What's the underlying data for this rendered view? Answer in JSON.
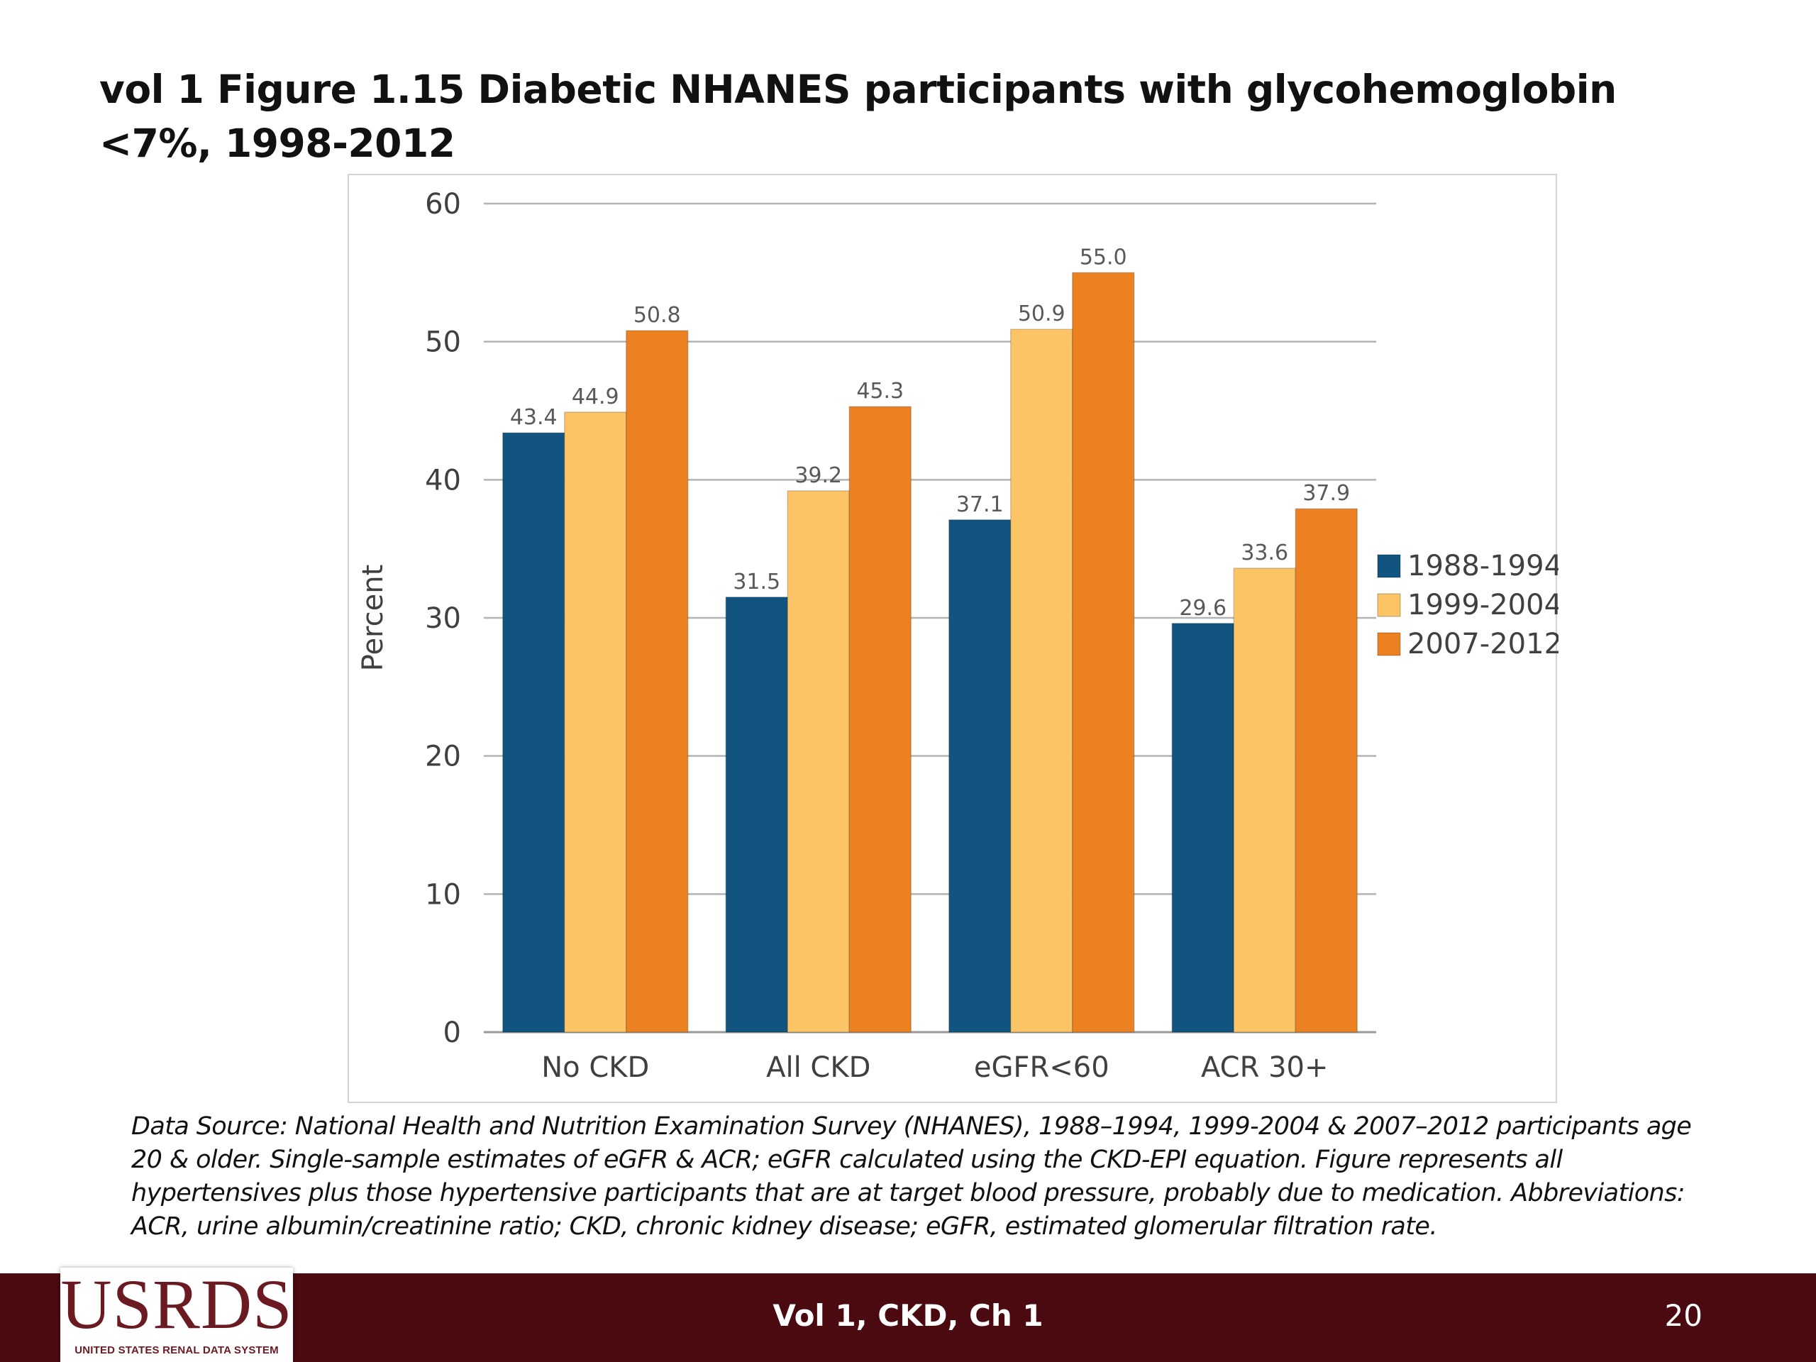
{
  "slide": {
    "title": "vol 1 Figure 1.15 Diabetic NHANES participants with glycohemoglobin <7%, 1998-2012",
    "caption": "Data Source: National Health and Nutrition Examination Survey (NHANES), 1988–1994, 1999-2004 & 2007–2012 participants age 20 & older. Single-sample estimates of eGFR & ACR; eGFR calculated using the CKD-EPI equation. Figure represents all hypertensives plus those hypertensive participants that are at target blood pressure, probably due to medication. Abbreviations: ACR, urine albumin/creatinine ratio; CKD, chronic kidney disease; eGFR, estimated glomerular filtration rate.",
    "footer_label": "Vol 1, CKD, Ch 1",
    "page_number": "20",
    "logo_text": "USRDS",
    "logo_subtext": "UNITED STATES RENAL DATA SYSTEM"
  },
  "colors": {
    "footer_bg": "#4a0a10",
    "series_1": "#11547f",
    "series_2": "#fdc466",
    "series_3": "#ec8122"
  },
  "chart_data": {
    "type": "bar",
    "title": "",
    "xlabel": "",
    "ylabel": "Percent",
    "ylim": [
      0,
      60
    ],
    "yticks": [
      0,
      10,
      20,
      30,
      40,
      50,
      60
    ],
    "grid": true,
    "legend_position": "right",
    "categories": [
      "No CKD",
      "All CKD",
      "eGFR<60",
      "ACR 30+"
    ],
    "series": [
      {
        "name": "1988-1994",
        "color": "#11547f",
        "values": [
          43.4,
          31.5,
          37.1,
          29.6
        ]
      },
      {
        "name": "1999-2004",
        "color": "#fdc466",
        "values": [
          44.9,
          39.2,
          50.9,
          33.6
        ]
      },
      {
        "name": "2007-2012",
        "color": "#ec8122",
        "values": [
          50.8,
          45.3,
          55.0,
          37.9
        ]
      }
    ]
  }
}
